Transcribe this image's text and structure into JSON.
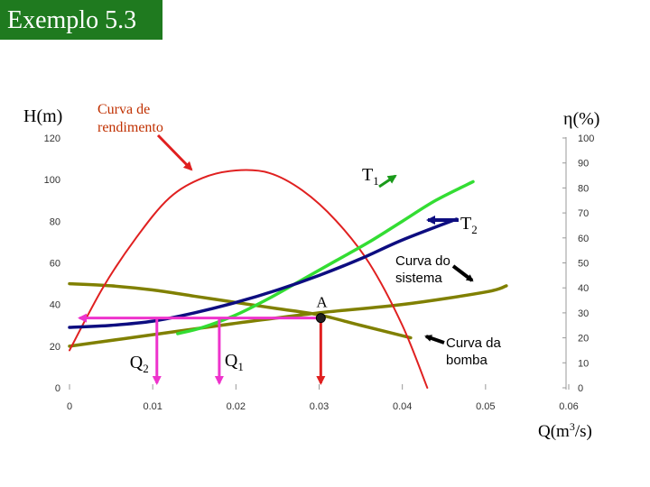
{
  "header": {
    "title": "Exemplo 5.3",
    "bg_color": "#1f7a1f",
    "text_color": "#ffffff"
  },
  "chart_data": {
    "type": "line",
    "x_axis": {
      "label_base": "Q(m",
      "label_sup": "3",
      "label_tail": "/s)",
      "range": [
        0,
        0.06
      ],
      "ticks": [
        "0",
        "0.01",
        "0.02",
        "0.03",
        "0.04",
        "0.05",
        "0.06"
      ]
    },
    "y_left": {
      "label": "H(m)",
      "range": [
        0,
        120
      ],
      "ticks": [
        "0",
        "20",
        "40",
        "60",
        "80",
        "100",
        "120"
      ]
    },
    "y_right": {
      "label": "η(%)",
      "range": [
        0,
        100
      ],
      "ticks": [
        "0",
        "10",
        "20",
        "30",
        "40",
        "50",
        "60",
        "70",
        "80",
        "90",
        "100"
      ]
    },
    "series": [
      {
        "key": "efficiency",
        "axis": "right",
        "color": "#e02020",
        "x": [
          0,
          0.004,
          0.008,
          0.012,
          0.016,
          0.02,
          0.024,
          0.028,
          0.032,
          0.036,
          0.04,
          0.043
        ],
        "y": [
          15,
          40,
          60,
          76,
          84,
          87,
          86,
          79,
          67,
          50,
          25,
          0
        ]
      },
      {
        "key": "pump1",
        "axis": "left",
        "color": "#808000",
        "x": [
          0,
          0.005,
          0.01,
          0.015,
          0.02,
          0.025,
          0.03,
          0.035,
          0.041
        ],
        "y": [
          50,
          49,
          47,
          44,
          41,
          38,
          35,
          30,
          24
        ]
      },
      {
        "key": "pump2",
        "axis": "left",
        "color": "#808000",
        "x": [
          0,
          0.01,
          0.02,
          0.03,
          0.04,
          0.05,
          0.0525
        ],
        "y": [
          20,
          25.5,
          31,
          36,
          40,
          46,
          49
        ]
      },
      {
        "key": "system1",
        "axis": "left",
        "color": "#33dd33",
        "x": [
          0.013,
          0.016,
          0.02,
          0.024,
          0.028,
          0.032,
          0.036,
          0.04,
          0.044,
          0.0485
        ],
        "y": [
          26,
          29,
          35,
          43,
          52,
          61,
          70,
          80,
          90,
          99
        ]
      },
      {
        "key": "system2",
        "axis": "left",
        "color": "#0d0d80",
        "x": [
          0,
          0.005,
          0.01,
          0.015,
          0.02,
          0.025,
          0.03,
          0.035,
          0.04,
          0.0465
        ],
        "y": [
          29,
          30,
          32,
          36,
          41,
          47,
          54,
          62,
          71,
          81
        ]
      }
    ],
    "operating_point": {
      "x": 0.0302,
      "y": 33.5,
      "label": "A"
    },
    "q2": {
      "x": 0.0105,
      "label": "Q",
      "sub": "2"
    },
    "q1": {
      "x": 0.018,
      "label": "Q",
      "sub": "1"
    },
    "annotations": {
      "eff_line1": "Curva de",
      "eff_line2": "rendimento",
      "t1": "T",
      "t1_sub": "1",
      "t2": "T",
      "t2_sub": "2",
      "sys_line1": "Curva do",
      "sys_line2": "sistema",
      "pump_line1": "Curva da",
      "pump_line2": "bomba"
    }
  }
}
